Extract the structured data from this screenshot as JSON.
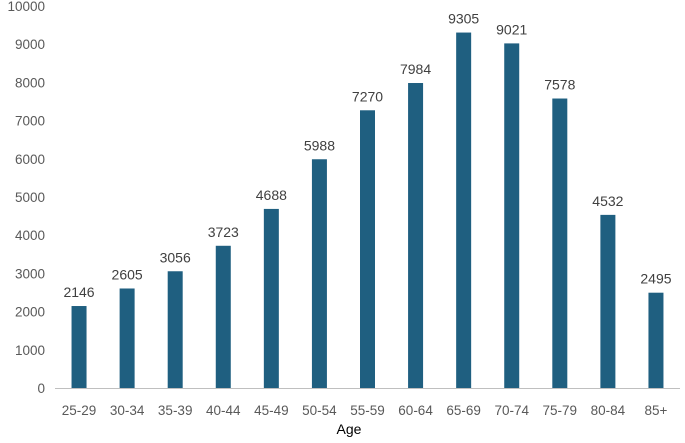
{
  "chart_data": {
    "type": "bar",
    "title": "",
    "xlabel": "Age",
    "ylabel": "",
    "categories": [
      "25-29",
      "30-34",
      "35-39",
      "40-44",
      "45-49",
      "50-54",
      "55-59",
      "60-64",
      "65-69",
      "70-74",
      "75-79",
      "80-84",
      "85+"
    ],
    "values": [
      2146,
      2605,
      3056,
      3723,
      4688,
      5988,
      7270,
      7984,
      9305,
      9021,
      7578,
      4532,
      2495
    ],
    "ylim": [
      0,
      10000
    ],
    "yticks": [
      0,
      1000,
      2000,
      3000,
      4000,
      5000,
      6000,
      7000,
      8000,
      9000,
      10000
    ],
    "grid": false,
    "legend": "none",
    "data_labels": true,
    "colors": {
      "bar": "#1f5f80",
      "axis": "#bfbfbf",
      "tick_text": "#595959",
      "label_text": "#404040"
    }
  }
}
